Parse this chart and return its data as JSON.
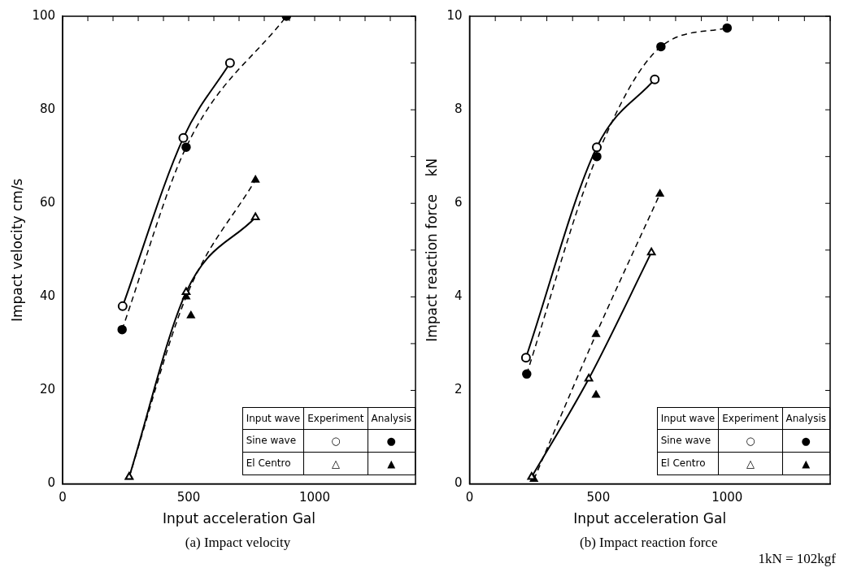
{
  "chart_data": [
    {
      "type": "line",
      "title": "(a) Impact velocity",
      "xlabel": "Input acceleration Gal",
      "ylabel": "Impact velocity cm/s",
      "legend_title": "Input wave",
      "annotations": [
        "Experiment",
        "Analysis",
        "Sine wave",
        "El Centro",
        "○",
        "●",
        "△",
        "▲"
      ],
      "xlim": [
        0,
        1400
      ],
      "xticks": [
        0,
        {
          "value": 100,
          "label": null
        },
        {
          "value": 200,
          "label": null
        },
        {
          "value": 300,
          "label": null
        },
        {
          "value": 400,
          "label": null
        },
        500,
        {
          "value": 600,
          "label": null
        },
        {
          "value": 700,
          "label": null
        },
        {
          "value": 800,
          "label": null
        },
        {
          "value": 900,
          "label": null
        },
        1000,
        {
          "value": 1100,
          "label": null
        },
        {
          "value": 1200,
          "label": null
        },
        {
          "value": 1300,
          "label": null
        },
        {
          "value": 1400,
          "label": null
        }
      ],
      "ylim": [
        0,
        100
      ],
      "yticks": [
        0,
        {
          "value": 10,
          "label": null
        },
        20,
        {
          "value": 30,
          "label": null
        },
        40,
        {
          "value": 50,
          "label": null
        },
        60,
        {
          "value": 70,
          "label": null
        },
        80,
        {
          "value": 90,
          "label": null
        },
        100
      ],
      "series": [
        {
          "color": "#000000",
          "marker": "circle",
          "line_style": "solid",
          "x": [
            238,
            479,
            664
          ],
          "values": [
            38,
            74,
            90
          ]
        },
        {
          "color": "#000000",
          "marker": "circle",
          "line_style": "dashed",
          "x": [
            236,
            490,
            888
          ],
          "values": [
            33,
            72,
            100
          ]
        },
        {
          "color": "#000000",
          "marker": "triangle",
          "line_style": "solid",
          "x": [
            264,
            490,
            765
          ],
          "values": [
            1.5,
            41,
            57
          ]
        },
        {
          "color": "#000000",
          "marker": "triangle",
          "line_style": "dashed",
          "x": [
            264,
            490,
            765
          ],
          "values": [
            1.5,
            40,
            65
          ]
        },
        {
          "type": "scatter",
          "color": "#000000",
          "marker": "triangle",
          "line_style": "dashed",
          "x": [
            509
          ],
          "values": [
            36
          ]
        }
      ]
    },
    {
      "type": "line",
      "title": "(b) Impact reaction force",
      "xlabel": "Input acceleration Gal",
      "ylabel": "Impact reaction force    kN",
      "legend_title": "Input wave",
      "annotations": [
        "Experiment",
        "Analysis",
        "Sine wave",
        "El Centro",
        "○",
        "●",
        "△",
        "▲",
        "1kN = 102kgf"
      ],
      "xlim": [
        0,
        1400
      ],
      "xticks": [
        0,
        {
          "value": 100,
          "label": null
        },
        {
          "value": 200,
          "label": null
        },
        {
          "value": 300,
          "label": null
        },
        {
          "value": 400,
          "label": null
        },
        500,
        {
          "value": 600,
          "label": null
        },
        {
          "value": 700,
          "label": null
        },
        {
          "value": 800,
          "label": null
        },
        {
          "value": 900,
          "label": null
        },
        1000,
        {
          "value": 1100,
          "label": null
        },
        {
          "value": 1200,
          "label": null
        },
        {
          "value": 1300,
          "label": null
        },
        {
          "value": 1400,
          "label": null
        }
      ],
      "ylim": [
        0,
        10
      ],
      "yticks": [
        0,
        {
          "value": 1,
          "label": null
        },
        2,
        {
          "value": 3,
          "label": null
        },
        4,
        {
          "value": 5,
          "label": null
        },
        6,
        {
          "value": 7,
          "label": null
        },
        8,
        {
          "value": 9,
          "label": null
        },
        10
      ],
      "series": [
        {
          "color": "#000000",
          "marker": "circle",
          "line_style": "solid",
          "x": [
            219,
            494,
            719
          ],
          "values": [
            2.7,
            7.2,
            8.65
          ]
        },
        {
          "color": "#000000",
          "marker": "circle",
          "line_style": "dashed",
          "x": [
            222,
            494,
            743,
            1000
          ],
          "values": [
            2.35,
            7.0,
            9.35,
            9.75
          ]
        },
        {
          "color": "#000000",
          "marker": "triangle",
          "line_style": "solid",
          "x": [
            241,
            463,
            706
          ],
          "values": [
            0.15,
            2.25,
            4.95
          ]
        },
        {
          "color": "#000000",
          "marker": "triangle",
          "line_style": "dashed",
          "x": [
            250,
            491,
            739
          ],
          "values": [
            0.1,
            3.2,
            6.2
          ]
        },
        {
          "type": "scatter",
          "color": "#000000",
          "marker": "triangle",
          "line_style": "dashed",
          "x": [
            491
          ],
          "values": [
            1.9
          ]
        }
      ]
    }
  ]
}
